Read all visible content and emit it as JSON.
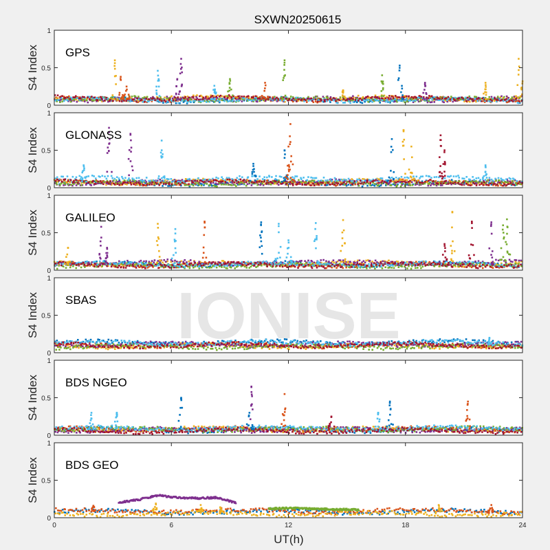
{
  "chart_data": {
    "type": "scatter",
    "title": "SXWN20250615",
    "xlabel": "UT(h)",
    "ylabel": "S4 Index",
    "xlim": [
      0,
      24
    ],
    "ylim": [
      0,
      1
    ],
    "xticks": [
      "0",
      "6",
      "12",
      "18",
      "24"
    ],
    "yticks": [
      "0",
      "0.5",
      "1"
    ],
    "watermark": "IONISE",
    "colors": [
      "#0072BD",
      "#D95319",
      "#EDB120",
      "#7E2F8E",
      "#77AC30",
      "#4DBEEE",
      "#A2142F"
    ],
    "panels": [
      {
        "label": "GPS",
        "baselines": [
          0.07,
          0.08,
          0.09,
          0.08,
          0.08,
          0.07,
          0.09
        ],
        "spikes": [
          [
            3.1,
            0.6,
            2
          ],
          [
            3.4,
            0.38,
            1
          ],
          [
            3.7,
            0.25,
            1
          ],
          [
            5.3,
            0.46,
            5
          ],
          [
            6.3,
            0.35,
            3
          ],
          [
            6.5,
            0.62,
            3
          ],
          [
            8.2,
            0.26,
            5
          ],
          [
            9.0,
            0.35,
            4
          ],
          [
            10.8,
            0.3,
            1
          ],
          [
            11.8,
            0.6,
            4
          ],
          [
            14.8,
            0.2,
            2
          ],
          [
            16.8,
            0.4,
            4
          ],
          [
            17.7,
            0.53,
            0
          ],
          [
            19.0,
            0.3,
            3
          ],
          [
            22.1,
            0.3,
            2
          ],
          [
            23.8,
            0.62,
            2
          ],
          [
            24.0,
            0.32,
            2
          ]
        ]
      },
      {
        "label": "GLONASS",
        "baselines": [
          0.06,
          0.07,
          0.08,
          0.07,
          0.06,
          0.12,
          0.07
        ],
        "spikes": [
          [
            1.5,
            0.3,
            5
          ],
          [
            2.8,
            0.8,
            3
          ],
          [
            3.9,
            0.72,
            3
          ],
          [
            5.5,
            0.63,
            5
          ],
          [
            10.2,
            0.32,
            0
          ],
          [
            11.8,
            0.5,
            0
          ],
          [
            12.0,
            0.55,
            1
          ],
          [
            12.1,
            0.85,
            1
          ],
          [
            17.3,
            0.65,
            0
          ],
          [
            17.9,
            0.77,
            2
          ],
          [
            18.3,
            0.55,
            2
          ],
          [
            19.8,
            0.7,
            6
          ],
          [
            20.0,
            0.5,
            6
          ],
          [
            22.1,
            0.3,
            5
          ]
        ]
      },
      {
        "label": "GALILEO",
        "baselines": [
          0.08,
          0.07,
          0.09,
          0.1,
          0.06,
          0.08,
          0.07
        ],
        "spikes": [
          [
            0.7,
            0.3,
            2
          ],
          [
            2.4,
            0.58,
            3
          ],
          [
            2.7,
            0.3,
            3
          ],
          [
            5.3,
            0.62,
            2
          ],
          [
            6.2,
            0.55,
            5
          ],
          [
            7.7,
            0.65,
            1
          ],
          [
            10.6,
            0.64,
            0
          ],
          [
            11.5,
            0.62,
            5
          ],
          [
            12.0,
            0.4,
            5
          ],
          [
            13.4,
            0.63,
            5
          ],
          [
            14.8,
            0.67,
            2
          ],
          [
            20.0,
            0.35,
            6
          ],
          [
            20.4,
            0.78,
            2
          ],
          [
            21.4,
            0.65,
            6
          ],
          [
            22.4,
            0.64,
            3
          ],
          [
            23.0,
            0.6,
            4
          ],
          [
            23.2,
            0.68,
            4
          ]
        ]
      },
      {
        "label": "SBAS",
        "baselines": [
          0.14,
          0.1,
          0.09,
          0.11,
          0.08,
          0.13,
          0.1
        ],
        "spikes": [
          [
            22.3,
            0.2,
            5
          ]
        ]
      },
      {
        "label": "BDS NGEO",
        "baselines": [
          0.07,
          0.08,
          0.08,
          0.07,
          0.08,
          0.09,
          0.06
        ],
        "spikes": [
          [
            1.9,
            0.3,
            5
          ],
          [
            3.2,
            0.3,
            5
          ],
          [
            6.5,
            0.5,
            0
          ],
          [
            10.0,
            0.3,
            0
          ],
          [
            10.1,
            0.65,
            3
          ],
          [
            11.8,
            0.55,
            1
          ],
          [
            14.2,
            0.25,
            6
          ],
          [
            16.6,
            0.3,
            5
          ],
          [
            17.2,
            0.45,
            0
          ],
          [
            21.2,
            0.45,
            1
          ]
        ]
      },
      {
        "label": "BDS GEO",
        "baselines": [
          0.08,
          0.09,
          0.05,
          null,
          null,
          null,
          null
        ],
        "segments": [
          {
            "series": 3,
            "from": 3.3,
            "to": 9.3,
            "values": [
              0.2,
              0.24,
              0.3,
              0.27,
              0.26,
              0.27,
              0.2
            ]
          },
          {
            "series": 4,
            "from": 11.0,
            "to": 15.6,
            "values": [
              0.12,
              0.13,
              0.12,
              0.11,
              0.11
            ]
          }
        ],
        "spikes": [
          [
            2.0,
            0.16,
            1
          ],
          [
            5.2,
            0.19,
            2
          ],
          [
            7.5,
            0.17,
            2
          ],
          [
            8.5,
            0.14,
            2
          ],
          [
            19.7,
            0.17,
            2
          ],
          [
            22.4,
            0.17,
            1
          ]
        ]
      }
    ]
  }
}
